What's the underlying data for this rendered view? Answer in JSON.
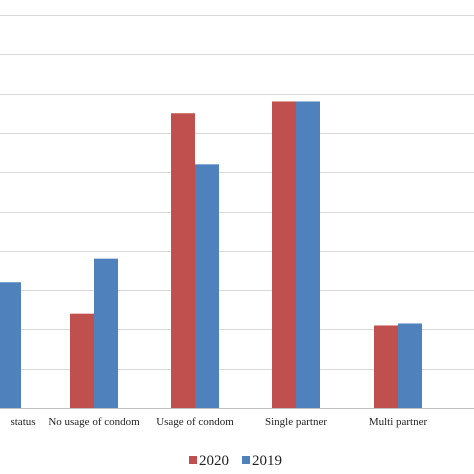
{
  "chart_data": {
    "type": "bar",
    "categories": [
      "status",
      "No usage of condom",
      "Usage of condom",
      "Single partner",
      "Multi partner"
    ],
    "series": [
      {
        "name": "2020",
        "color": "#c0504d",
        "values": [
          0,
          2.4,
          7.5,
          7.8,
          2.1
        ]
      },
      {
        "name": "2019",
        "color": "#4f81bd",
        "values": [
          3.2,
          3.8,
          6.2,
          7.8,
          2.15
        ]
      }
    ],
    "ylim": [
      0,
      10
    ],
    "grid": true,
    "gridline_color": "#d9d9d9",
    "legend_position": "bottom"
  }
}
